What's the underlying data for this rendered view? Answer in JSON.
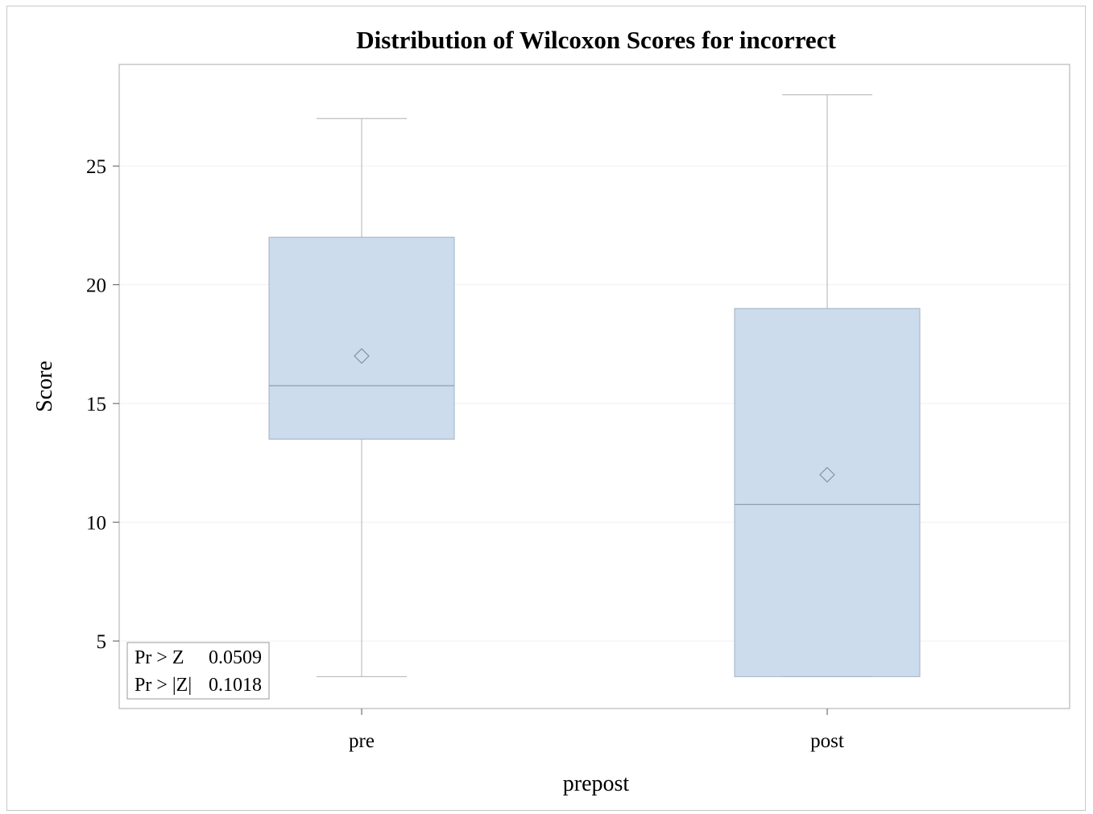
{
  "chart_data": {
    "type": "box",
    "title": "Distribution of Wilcoxon Scores for incorrect",
    "xlabel": "prepost",
    "ylabel": "Score",
    "ylim": [
      2.8,
      28.6
    ],
    "yticks": [
      5,
      10,
      15,
      20,
      25
    ],
    "grid": true,
    "categories": [
      "pre",
      "post"
    ],
    "boxes": [
      {
        "category": "pre",
        "min": 3.5,
        "q1": 13.5,
        "median": 15.75,
        "mean": 17.0,
        "q3": 22.0,
        "max": 27.0
      },
      {
        "category": "post",
        "min": 3.5,
        "q1": 3.5,
        "median": 10.75,
        "mean": 12.0,
        "q3": 19.0,
        "max": 28.0
      }
    ],
    "inset": {
      "position": "bottom-left",
      "rows": [
        {
          "label": "Pr > Z",
          "value": "0.0509"
        },
        {
          "label": "Pr > |Z|",
          "value": "0.1018"
        }
      ]
    },
    "colors": {
      "box_fill": "#cddcec",
      "box_stroke": "#9fb0c6",
      "median_line": "#8d9fb6",
      "whisker": "#b0b0b0",
      "grid": "#f0f0f0",
      "plot_border": "#aaaaaa",
      "mean_marker": "#7f93ad"
    }
  }
}
